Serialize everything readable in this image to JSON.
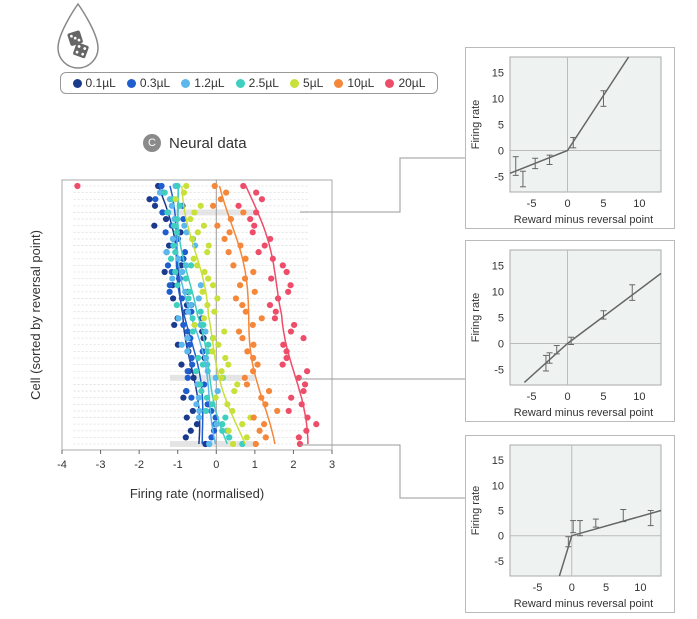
{
  "legend": {
    "items": [
      {
        "label": "0.1µL",
        "color": "#1b3a8c"
      },
      {
        "label": "0.3µL",
        "color": "#1f5ecf"
      },
      {
        "label": "1.2µL",
        "color": "#5ab8ec"
      },
      {
        "label": "2.5µL",
        "color": "#3fcfbf"
      },
      {
        "label": "5µL",
        "color": "#c9e03a"
      },
      {
        "label": "10µL",
        "color": "#f5873a"
      },
      {
        "label": "20µL",
        "color": "#ee4d6a"
      }
    ]
  },
  "panel": {
    "badge": "C",
    "title": "Neural data"
  },
  "chart_data": [
    {
      "type": "scatter",
      "title": "Neural data",
      "xlabel": "Firing rate (normalised)",
      "ylabel": "Cell (sorted by reversal point)",
      "xlim": [
        -4,
        3
      ],
      "xticks": [
        "-4",
        "-3",
        "-2",
        "-1",
        "0",
        "1",
        "2",
        "3"
      ],
      "n_cells": 40,
      "curve_centers": {
        "0.1µL": {
          "top": -1.5,
          "mid": -0.75,
          "bottom": -0.5
        },
        "0.3µL": {
          "top": -1.3,
          "mid": -0.75,
          "bottom": -0.3
        },
        "1.2µL": {
          "top": -1.1,
          "mid": -0.7,
          "bottom": 0.1
        },
        "2.5µL": {
          "top": -1.0,
          "mid": -0.6,
          "bottom": 0.35
        },
        "5µL": {
          "top": -0.8,
          "mid": -0.3,
          "bottom": 0.7
        },
        "10µL": {
          "top": 0.2,
          "mid": 0.85,
          "bottom": 1.4
        },
        "20µL": {
          "top": 0.8,
          "mid": 1.8,
          "bottom": 2.3
        }
      }
    },
    {
      "type": "line",
      "xlabel": "Reward minus reversal point",
      "ylabel": "Firing rate",
      "xlim": [
        -8,
        13
      ],
      "ylim": [
        -8,
        18
      ],
      "xticks": [
        "-5",
        "0",
        "5",
        "10"
      ],
      "yticks": [
        "-5",
        "0",
        "5",
        "10",
        "15"
      ],
      "fit_line": [
        [
          -8,
          -4.4
        ],
        [
          0,
          0
        ],
        [
          8.5,
          18
        ]
      ],
      "points": [
        {
          "x": -7.2,
          "y": -3.0,
          "err": 1.8
        },
        {
          "x": -6.2,
          "y": -5.5,
          "err": 1.5
        },
        {
          "x": -4.5,
          "y": -2.5,
          "err": 1.0
        },
        {
          "x": -2.5,
          "y": -1.8,
          "err": 0.9
        },
        {
          "x": 0.8,
          "y": 1.5,
          "err": 1.0
        },
        {
          "x": 5.0,
          "y": 10.0,
          "err": 1.5
        }
      ]
    },
    {
      "type": "line",
      "xlabel": "Reward minus reversal point",
      "ylabel": "Firing rate",
      "xlim": [
        -8,
        13
      ],
      "ylim": [
        -8,
        18
      ],
      "xticks": [
        "-5",
        "0",
        "5",
        "10"
      ],
      "yticks": [
        "-5",
        "0",
        "5",
        "10",
        "15"
      ],
      "fit_line": [
        [
          -6,
          -7.5
        ],
        [
          0,
          0
        ],
        [
          13,
          13.5
        ]
      ],
      "points": [
        {
          "x": -3.0,
          "y": -3.8,
          "err": 1.5
        },
        {
          "x": -2.5,
          "y": -2.8,
          "err": 1.0
        },
        {
          "x": -1.5,
          "y": -1.2,
          "err": 0.8
        },
        {
          "x": 0.5,
          "y": 0.5,
          "err": 0.7
        },
        {
          "x": 5.0,
          "y": 5.5,
          "err": 0.8
        },
        {
          "x": 9.0,
          "y": 9.8,
          "err": 1.5
        }
      ]
    },
    {
      "type": "line",
      "xlabel": "Reward minus reversal point",
      "ylabel": "Firing rate",
      "xlim": [
        -9,
        13
      ],
      "ylim": [
        -8,
        18
      ],
      "xticks": [
        "-5",
        "0",
        "5",
        "10"
      ],
      "yticks": [
        "-5",
        "0",
        "5",
        "10",
        "15"
      ],
      "fit_line": [
        [
          -1.8,
          -8
        ],
        [
          0,
          0
        ],
        [
          13,
          5
        ]
      ],
      "points": [
        {
          "x": -0.5,
          "y": -1.2,
          "err": 1.0
        },
        {
          "x": 0.2,
          "y": 1.8,
          "err": 1.2
        },
        {
          "x": 1.2,
          "y": 1.5,
          "err": 1.5
        },
        {
          "x": 3.5,
          "y": 2.5,
          "err": 0.8
        },
        {
          "x": 7.5,
          "y": 4.0,
          "err": 1.2
        },
        {
          "x": 11.5,
          "y": 3.5,
          "err": 1.5
        }
      ]
    }
  ]
}
